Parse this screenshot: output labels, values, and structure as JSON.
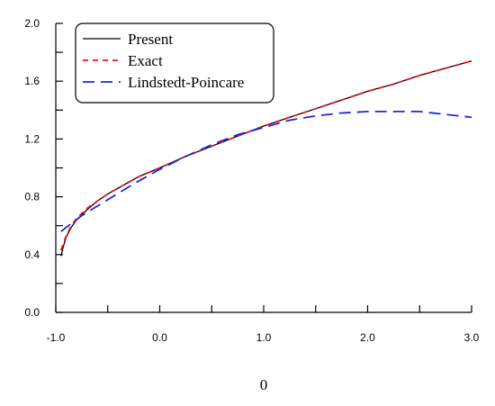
{
  "chart_data": {
    "type": "line",
    "title": "",
    "xlabel": "0",
    "ylabel": "",
    "xlim": [
      -1.0,
      3.0
    ],
    "ylim": [
      0.0,
      2.0
    ],
    "x_ticks": [
      -1.0,
      0.0,
      1.0,
      2.0,
      3.0
    ],
    "x_tick_labels": [
      "-1.0",
      "0.0",
      "1.0",
      "2.0",
      "3.0"
    ],
    "y_ticks": [
      0.0,
      0.4,
      0.8,
      1.2,
      1.6,
      2.0
    ],
    "y_tick_labels": [
      "0.0",
      "0.4",
      "0.8",
      "1.2",
      "1.6",
      "2.0"
    ],
    "grid": false,
    "legend_position": "top-left",
    "series": [
      {
        "name": "Present",
        "color": "#000000",
        "style": "solid",
        "x": [
          -0.95,
          -0.93,
          -0.9,
          -0.85,
          -0.8,
          -0.7,
          -0.6,
          -0.5,
          -0.4,
          -0.2,
          0.0,
          0.25,
          0.5,
          0.75,
          1.0,
          1.25,
          1.5,
          1.75,
          2.0,
          2.25,
          2.5,
          2.75,
          3.0
        ],
        "y": [
          0.39,
          0.45,
          0.52,
          0.59,
          0.64,
          0.71,
          0.77,
          0.82,
          0.86,
          0.94,
          1.0,
          1.08,
          1.15,
          1.22,
          1.29,
          1.35,
          1.41,
          1.47,
          1.53,
          1.58,
          1.64,
          1.69,
          1.74
        ]
      },
      {
        "name": "Exact",
        "color": "#e8141c",
        "style": "dashed",
        "x": [
          -0.95,
          -0.93,
          -0.9,
          -0.85,
          -0.8,
          -0.7,
          -0.6,
          -0.5,
          -0.4,
          -0.2,
          0.0,
          0.25,
          0.5,
          0.75,
          1.0,
          1.25,
          1.5,
          1.75,
          2.0,
          2.25,
          2.5,
          2.75,
          3.0
        ],
        "y": [
          0.43,
          0.47,
          0.53,
          0.6,
          0.65,
          0.72,
          0.77,
          0.82,
          0.86,
          0.94,
          1.0,
          1.08,
          1.15,
          1.22,
          1.29,
          1.35,
          1.41,
          1.47,
          1.53,
          1.58,
          1.64,
          1.69,
          1.74
        ]
      },
      {
        "name": "Lindstedt-Poincare",
        "color": "#1a2adb",
        "style": "long-dashed",
        "x": [
          -0.95,
          -0.75,
          -0.5,
          -0.25,
          0.0,
          0.25,
          0.5,
          0.75,
          1.0,
          1.25,
          1.5,
          1.75,
          2.0,
          2.25,
          2.5,
          2.75,
          3.0
        ],
        "y": [
          0.56,
          0.67,
          0.78,
          0.89,
          0.99,
          1.08,
          1.16,
          1.23,
          1.28,
          1.33,
          1.36,
          1.38,
          1.39,
          1.39,
          1.39,
          1.37,
          1.35
        ]
      }
    ]
  }
}
